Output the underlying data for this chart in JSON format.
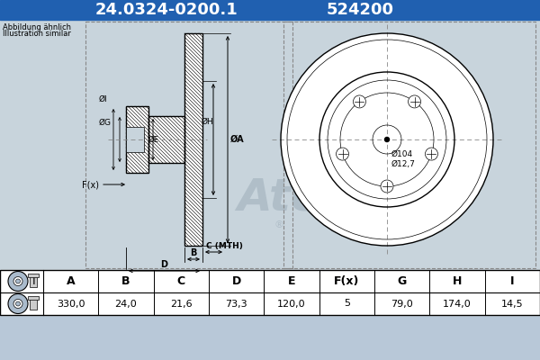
{
  "title_part": "24.0324-0200.1",
  "title_code": "524200",
  "header_bg": "#2060b0",
  "header_text_color": "#ffffff",
  "bg_color": "#b8c8d8",
  "draw_bg": "#c8d4dc",
  "table_bg": "#ffffff",
  "table_headers": [
    "A",
    "B",
    "C",
    "D",
    "E",
    "F(x)",
    "G",
    "H",
    "I"
  ],
  "table_values": [
    "330,0",
    "24,0",
    "21,6",
    "73,3",
    "120,0",
    "5",
    "79,0",
    "174,0",
    "14,5"
  ],
  "note_line1": "Abbildung ähnlich",
  "note_line2": "Illustration similar",
  "dim104": "Ø104",
  "dim127": "Ø12,7"
}
